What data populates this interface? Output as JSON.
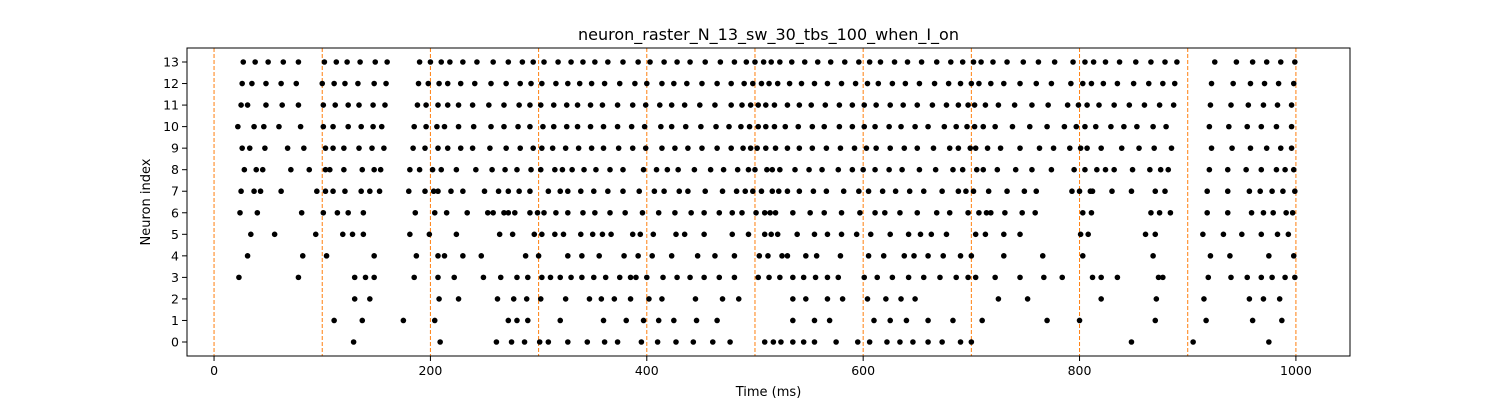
{
  "chart_data": {
    "type": "scatter",
    "title": "neuron_raster_N_13_sw_30_tbs_100_when_I_on",
    "xlabel": "Time (ms)",
    "ylabel": "Neuron index",
    "xlim": [
      -25,
      1050
    ],
    "ylim": [
      -0.65,
      13.65
    ],
    "x_ticks": [
      0,
      200,
      400,
      600,
      800,
      1000
    ],
    "y_ticks": [
      0,
      1,
      2,
      3,
      4,
      5,
      6,
      7,
      8,
      9,
      10,
      11,
      12,
      13
    ],
    "grid": false,
    "marker_color": "#000000",
    "vline_color": "#ff7f0e",
    "vlines": [
      0,
      100,
      200,
      300,
      400,
      500,
      600,
      700,
      800,
      900,
      1000
    ],
    "spikes": [
      {
        "neuron": 0,
        "times": [
          129,
          209,
          261,
          275,
          287,
          301,
          309,
          327,
          345,
          361,
          373,
          395,
          410,
          427,
          443,
          461,
          477,
          509,
          517,
          524,
          535,
          545,
          555,
          575,
          595,
          606,
          622,
          634,
          646,
          660,
          673,
          690,
          700,
          848,
          905,
          975
        ]
      },
      {
        "neuron": 1,
        "times": [
          111,
          137,
          175,
          204,
          272,
          280,
          290,
          320,
          360,
          381,
          397,
          411,
          425,
          446,
          465,
          535,
          555,
          569,
          610,
          625,
          640,
          660,
          683,
          710,
          770,
          800,
          870,
          917,
          960,
          987
        ]
      },
      {
        "neuron": 2,
        "times": [
          130,
          144,
          208,
          226,
          262,
          277,
          289,
          302,
          325,
          347,
          358,
          370,
          385,
          402,
          414,
          445,
          470,
          485,
          535,
          547,
          567,
          581,
          604,
          621,
          635,
          648,
          725,
          752,
          820,
          871,
          915,
          957,
          970,
          985
        ]
      },
      {
        "neuron": 3,
        "times": [
          23,
          78,
          130,
          140,
          148,
          185,
          207,
          222,
          249,
          265,
          280,
          290,
          303,
          311,
          320,
          330,
          340,
          351,
          362,
          375,
          385,
          390,
          400,
          415,
          428,
          440,
          453,
          467,
          481,
          503,
          513,
          523,
          535,
          545,
          556,
          567,
          577,
          601,
          613,
          627,
          642,
          656,
          671,
          686,
          697,
          704,
          722,
          745,
          767,
          784,
          812,
          820,
          835,
          873,
          877,
          919,
          940,
          955,
          968,
          978,
          990,
          999
        ]
      },
      {
        "neuron": 4,
        "times": [
          31,
          82,
          104,
          148,
          187,
          207,
          213,
          230,
          247,
          288,
          300,
          327,
          340,
          356,
          379,
          392,
          405,
          423,
          447,
          463,
          481,
          504,
          512,
          525,
          530,
          547,
          557,
          579,
          605,
          619,
          638,
          647,
          660,
          674,
          690,
          700,
          730,
          766,
          803,
          868,
          921,
          939,
          975,
          998
        ]
      },
      {
        "neuron": 5,
        "times": [
          34,
          56,
          94,
          119,
          128,
          138,
          181,
          199,
          224,
          264,
          276,
          296,
          303,
          315,
          323,
          339,
          350,
          359,
          367,
          387,
          394,
          406,
          427,
          435,
          453,
          479,
          494,
          509,
          515,
          521,
          539,
          555,
          567,
          580,
          594,
          607,
          625,
          642,
          653,
          663,
          677,
          704,
          713,
          730,
          745,
          801,
          808,
          861,
          870,
          914,
          933,
          950,
          968,
          983,
          993
        ]
      },
      {
        "neuron": 6,
        "times": [
          24,
          40,
          81,
          101,
          114,
          124,
          138,
          186,
          204,
          215,
          234,
          253,
          258,
          268,
          272,
          278,
          292,
          299,
          305,
          316,
          327,
          341,
          352,
          366,
          380,
          396,
          411,
          426,
          441,
          453,
          467,
          479,
          488,
          501,
          509,
          514,
          519,
          535,
          551,
          564,
          580,
          597,
          611,
          620,
          634,
          650,
          668,
          680,
          697,
          707,
          714,
          718,
          731,
          747,
          759,
          803,
          811,
          866,
          874,
          884,
          918,
          937,
          959,
          970,
          979,
          991,
          997
        ]
      },
      {
        "neuron": 7,
        "times": [
          25,
          37,
          43,
          62,
          95,
          103,
          110,
          121,
          136,
          144,
          153,
          180,
          195,
          203,
          207,
          219,
          230,
          250,
          263,
          272,
          282,
          292,
          309,
          320,
          327,
          339,
          351,
          364,
          378,
          393,
          407,
          416,
          430,
          438,
          454,
          470,
          483,
          491,
          498,
          506,
          516,
          522,
          530,
          541,
          554,
          566,
          582,
          596,
          605,
          618,
          630,
          643,
          656,
          673,
          688,
          695,
          702,
          716,
          733,
          749,
          760,
          793,
          800,
          810,
          812,
          830,
          848,
          870,
          879,
          918,
          937,
          957,
          967,
          978,
          988,
          999
        ]
      },
      {
        "neuron": 8,
        "times": [
          28,
          39,
          45,
          71,
          88,
          103,
          107,
          120,
          137,
          148,
          154,
          181,
          190,
          202,
          210,
          224,
          242,
          257,
          269,
          280,
          293,
          302,
          315,
          322,
          331,
          342,
          353,
          366,
          378,
          397,
          409,
          419,
          429,
          444,
          459,
          471,
          484,
          494,
          500,
          511,
          516,
          523,
          537,
          550,
          562,
          577,
          590,
          600,
          611,
          624,
          636,
          652,
          667,
          683,
          692,
          705,
          711,
          724,
          741,
          756,
          774,
          795,
          805,
          816,
          824,
          832,
          849,
          865,
          875,
          882,
          920,
          937,
          954,
          968,
          982,
          990,
          998
        ]
      },
      {
        "neuron": 9,
        "times": [
          26,
          33,
          47,
          68,
          83,
          103,
          110,
          120,
          134,
          146,
          157,
          184,
          195,
          207,
          216,
          228,
          239,
          255,
          270,
          283,
          295,
          303,
          313,
          325,
          337,
          349,
          360,
          374,
          387,
          399,
          414,
          426,
          438,
          451,
          465,
          478,
          489,
          496,
          502,
          510,
          519,
          530,
          541,
          553,
          566,
          579,
          592,
          603,
          612,
          625,
          638,
          650,
          665,
          680,
          688,
          699,
          704,
          715,
          727,
          745,
          763,
          776,
          791,
          801,
          807,
          820,
          839,
          855,
          869,
          885,
          922,
          941,
          958,
          973,
          986,
          996
        ]
      },
      {
        "neuron": 10,
        "times": [
          22,
          37,
          46,
          60,
          80,
          101,
          110,
          124,
          136,
          147,
          155,
          185,
          196,
          206,
          213,
          226,
          240,
          256,
          268,
          281,
          292,
          304,
          314,
          326,
          336,
          348,
          360,
          373,
          386,
          398,
          413,
          423,
          436,
          450,
          464,
          476,
          487,
          495,
          503,
          510,
          518,
          528,
          540,
          553,
          564,
          578,
          590,
          601,
          611,
          624,
          635,
          648,
          660,
          675,
          686,
          696,
          703,
          711,
          722,
          738,
          754,
          770,
          786,
          797,
          805,
          815,
          829,
          841,
          853,
          868,
          880,
          920,
          938,
          955,
          968,
          982,
          996
        ]
      },
      {
        "neuron": 11,
        "times": [
          25,
          31,
          48,
          63,
          78,
          101,
          112,
          124,
          134,
          147,
          158,
          188,
          196,
          207,
          216,
          226,
          239,
          254,
          268,
          282,
          292,
          302,
          314,
          326,
          336,
          348,
          359,
          373,
          387,
          399,
          412,
          423,
          435,
          449,
          463,
          478,
          488,
          496,
          503,
          510,
          518,
          530,
          541,
          552,
          565,
          578,
          590,
          601,
          612,
          625,
          637,
          650,
          664,
          677,
          688,
          697,
          703,
          713,
          725,
          740,
          756,
          771,
          789,
          799,
          807,
          818,
          832,
          846,
          860,
          874,
          887,
          921,
          940,
          956,
          970,
          983,
          996
        ]
      },
      {
        "neuron": 12,
        "times": [
          26,
          35,
          48,
          62,
          76,
          100,
          111,
          121,
          133,
          148,
          159,
          189,
          198,
          208,
          216,
          228,
          241,
          256,
          270,
          283,
          293,
          303,
          316,
          327,
          338,
          349,
          361,
          375,
          389,
          400,
          414,
          425,
          437,
          451,
          465,
          478,
          490,
          498,
          506,
          513,
          521,
          532,
          543,
          555,
          567,
          580,
          593,
          604,
          614,
          627,
          639,
          652,
          666,
          679,
          690,
          700,
          707,
          718,
          730,
          745,
          760,
          774,
          792,
          803,
          811,
          822,
          835,
          850,
          864,
          877,
          888,
          922,
          942,
          958,
          971,
          984,
          998
        ]
      },
      {
        "neuron": 13,
        "times": [
          27,
          38,
          50,
          64,
          78,
          102,
          113,
          123,
          135,
          149,
          160,
          190,
          200,
          210,
          218,
          230,
          243,
          258,
          272,
          285,
          295,
          305,
          318,
          330,
          341,
          352,
          364,
          378,
          392,
          403,
          416,
          428,
          440,
          454,
          468,
          481,
          492,
          500,
          508,
          515,
          523,
          534,
          546,
          558,
          570,
          583,
          596,
          606,
          616,
          629,
          641,
          654,
          668,
          681,
          692,
          702,
          709,
          720,
          733,
          748,
          762,
          777,
          794,
          805,
          813,
          824,
          837,
          852,
          866,
          879,
          890,
          925,
          945,
          960,
          973,
          986,
          999
        ]
      }
    ]
  }
}
